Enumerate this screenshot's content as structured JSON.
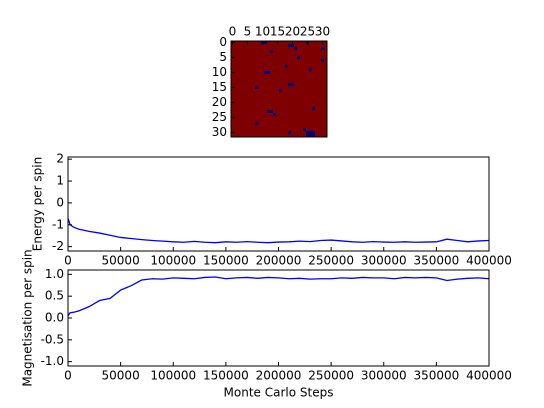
{
  "chart_data": [
    {
      "type": "heatmap",
      "xlim": [
        -0.5,
        31.5
      ],
      "ylim": [
        -0.5,
        31.5
      ],
      "xticks": [
        0,
        5,
        10,
        15,
        20,
        25,
        30
      ],
      "yticks": [
        0,
        5,
        10,
        15,
        20,
        25,
        30
      ],
      "zlim": [
        -1,
        1
      ],
      "colors": [
        "#00007f",
        "#7f0000"
      ],
      "z": [
        [
          1,
          1,
          1,
          1,
          1,
          1,
          1,
          1,
          1,
          1,
          -1,
          -1,
          1,
          1,
          1,
          1,
          1,
          1,
          1,
          1,
          1,
          1,
          1,
          1,
          1,
          -1,
          1,
          1,
          1,
          1,
          1,
          1
        ],
        [
          1,
          1,
          1,
          1,
          1,
          1,
          1,
          1,
          1,
          1,
          1,
          1,
          1,
          1,
          1,
          1,
          1,
          1,
          1,
          -1,
          -1,
          1,
          1,
          1,
          1,
          1,
          1,
          1,
          1,
          1,
          1,
          1
        ],
        [
          1,
          1,
          1,
          1,
          1,
          1,
          1,
          1,
          1,
          1,
          1,
          1,
          1,
          1,
          1,
          1,
          1,
          1,
          1,
          1,
          1,
          -1,
          1,
          1,
          1,
          1,
          1,
          1,
          1,
          1,
          -1,
          1
        ],
        [
          1,
          1,
          1,
          1,
          1,
          1,
          1,
          1,
          1,
          1,
          1,
          1,
          1,
          -1,
          1,
          1,
          1,
          1,
          1,
          1,
          1,
          1,
          1,
          1,
          1,
          1,
          1,
          1,
          1,
          1,
          1,
          1
        ],
        [
          1,
          1,
          1,
          1,
          1,
          1,
          1,
          1,
          1,
          1,
          1,
          1,
          1,
          1,
          1,
          1,
          1,
          1,
          1,
          1,
          1,
          1,
          1,
          1,
          1,
          1,
          1,
          1,
          1,
          1,
          1,
          1
        ],
        [
          1,
          1,
          1,
          1,
          1,
          1,
          1,
          1,
          1,
          1,
          1,
          1,
          1,
          1,
          1,
          1,
          1,
          1,
          1,
          1,
          1,
          1,
          -1,
          1,
          1,
          1,
          1,
          1,
          1,
          1,
          1,
          1
        ],
        [
          1,
          1,
          1,
          1,
          1,
          1,
          1,
          1,
          1,
          1,
          1,
          1,
          1,
          1,
          1,
          1,
          1,
          1,
          1,
          1,
          1,
          1,
          1,
          1,
          1,
          1,
          1,
          1,
          1,
          1,
          -1,
          1
        ],
        [
          1,
          1,
          1,
          1,
          1,
          1,
          1,
          1,
          1,
          1,
          1,
          1,
          1,
          1,
          1,
          1,
          1,
          1,
          1,
          1,
          1,
          1,
          1,
          1,
          1,
          1,
          1,
          1,
          1,
          1,
          1,
          1
        ],
        [
          1,
          1,
          1,
          1,
          1,
          1,
          1,
          1,
          1,
          1,
          1,
          1,
          1,
          1,
          1,
          1,
          1,
          1,
          -1,
          1,
          1,
          1,
          1,
          1,
          1,
          1,
          1,
          1,
          1,
          1,
          1,
          1
        ],
        [
          1,
          1,
          1,
          1,
          1,
          1,
          1,
          1,
          1,
          1,
          1,
          1,
          1,
          1,
          1,
          1,
          1,
          1,
          1,
          1,
          1,
          1,
          1,
          1,
          1,
          1,
          -1,
          1,
          1,
          1,
          1,
          1
        ],
        [
          1,
          1,
          1,
          1,
          1,
          1,
          1,
          1,
          1,
          1,
          1,
          -1,
          -1,
          1,
          1,
          1,
          1,
          1,
          1,
          1,
          1,
          1,
          1,
          1,
          1,
          1,
          1,
          1,
          1,
          1,
          1,
          1
        ],
        [
          1,
          1,
          1,
          1,
          1,
          1,
          1,
          1,
          1,
          1,
          1,
          1,
          1,
          1,
          1,
          1,
          1,
          1,
          1,
          1,
          1,
          1,
          1,
          1,
          1,
          1,
          1,
          1,
          1,
          1,
          1,
          1
        ],
        [
          1,
          1,
          1,
          1,
          1,
          1,
          1,
          1,
          1,
          1,
          1,
          1,
          1,
          1,
          1,
          1,
          1,
          1,
          1,
          1,
          1,
          1,
          1,
          1,
          1,
          1,
          1,
          1,
          1,
          1,
          1,
          1
        ],
        [
          1,
          1,
          1,
          1,
          1,
          1,
          1,
          1,
          1,
          1,
          1,
          1,
          1,
          1,
          1,
          1,
          1,
          1,
          1,
          1,
          1,
          1,
          1,
          1,
          1,
          1,
          1,
          1,
          1,
          1,
          1,
          1
        ],
        [
          1,
          1,
          1,
          1,
          1,
          1,
          1,
          1,
          1,
          1,
          1,
          1,
          1,
          1,
          1,
          1,
          1,
          1,
          1,
          -1,
          -1,
          1,
          1,
          1,
          1,
          1,
          1,
          1,
          1,
          1,
          1,
          1
        ],
        [
          1,
          1,
          1,
          1,
          1,
          1,
          1,
          1,
          -1,
          1,
          1,
          1,
          1,
          1,
          1,
          1,
          1,
          1,
          1,
          1,
          1,
          1,
          1,
          1,
          1,
          1,
          1,
          1,
          1,
          1,
          1,
          1
        ],
        [
          1,
          1,
          1,
          1,
          1,
          1,
          1,
          1,
          1,
          1,
          1,
          1,
          1,
          1,
          1,
          1,
          -1,
          1,
          1,
          1,
          1,
          1,
          1,
          1,
          1,
          1,
          1,
          1,
          1,
          1,
          1,
          1
        ],
        [
          1,
          1,
          1,
          1,
          1,
          1,
          1,
          1,
          1,
          1,
          1,
          1,
          1,
          1,
          1,
          1,
          1,
          1,
          1,
          1,
          1,
          1,
          1,
          1,
          1,
          1,
          1,
          1,
          1,
          1,
          1,
          1
        ],
        [
          1,
          1,
          1,
          1,
          1,
          1,
          1,
          1,
          1,
          1,
          1,
          1,
          1,
          1,
          1,
          1,
          1,
          1,
          1,
          1,
          1,
          1,
          1,
          1,
          1,
          1,
          1,
          1,
          1,
          1,
          1,
          1
        ],
        [
          1,
          1,
          1,
          1,
          1,
          1,
          1,
          1,
          1,
          1,
          1,
          1,
          1,
          1,
          1,
          1,
          1,
          1,
          1,
          1,
          1,
          1,
          1,
          1,
          1,
          1,
          1,
          1,
          1,
          1,
          1,
          1
        ],
        [
          1,
          1,
          1,
          1,
          1,
          1,
          1,
          1,
          1,
          1,
          1,
          1,
          1,
          1,
          1,
          1,
          1,
          1,
          1,
          1,
          1,
          1,
          1,
          1,
          1,
          1,
          1,
          1,
          1,
          1,
          1,
          1
        ],
        [
          1,
          1,
          1,
          1,
          1,
          1,
          1,
          1,
          1,
          1,
          1,
          1,
          1,
          1,
          1,
          1,
          1,
          1,
          1,
          1,
          1,
          1,
          1,
          1,
          1,
          1,
          1,
          1,
          1,
          1,
          1,
          1
        ],
        [
          1,
          1,
          1,
          1,
          1,
          1,
          1,
          1,
          1,
          1,
          1,
          1,
          1,
          1,
          1,
          1,
          1,
          1,
          1,
          1,
          1,
          1,
          1,
          1,
          1,
          1,
          1,
          -1,
          1,
          1,
          1,
          1
        ],
        [
          1,
          1,
          1,
          1,
          1,
          1,
          1,
          1,
          1,
          1,
          1,
          1,
          -1,
          -1,
          1,
          1,
          1,
          1,
          1,
          1,
          1,
          1,
          1,
          1,
          1,
          1,
          1,
          1,
          1,
          1,
          1,
          1
        ],
        [
          1,
          1,
          1,
          1,
          1,
          1,
          1,
          1,
          1,
          1,
          1,
          1,
          1,
          1,
          -1,
          1,
          1,
          1,
          1,
          1,
          1,
          1,
          1,
          1,
          1,
          1,
          1,
          1,
          1,
          1,
          1,
          1
        ],
        [
          1,
          1,
          1,
          1,
          1,
          1,
          1,
          1,
          1,
          1,
          1,
          1,
          1,
          1,
          1,
          1,
          1,
          1,
          1,
          1,
          1,
          1,
          1,
          1,
          1,
          1,
          1,
          1,
          1,
          1,
          1,
          1
        ],
        [
          1,
          1,
          1,
          1,
          1,
          1,
          1,
          1,
          1,
          1,
          1,
          1,
          1,
          1,
          1,
          1,
          1,
          1,
          1,
          1,
          1,
          1,
          1,
          1,
          1,
          1,
          1,
          1,
          1,
          1,
          1,
          1
        ],
        [
          1,
          1,
          1,
          1,
          1,
          1,
          1,
          1,
          -1,
          1,
          1,
          1,
          1,
          1,
          1,
          1,
          1,
          1,
          1,
          1,
          1,
          1,
          1,
          1,
          1,
          1,
          1,
          1,
          1,
          1,
          1,
          1
        ],
        [
          1,
          1,
          1,
          1,
          1,
          1,
          1,
          1,
          1,
          1,
          1,
          1,
          1,
          1,
          1,
          1,
          1,
          1,
          1,
          1,
          1,
          1,
          1,
          1,
          1,
          1,
          1,
          1,
          1,
          1,
          1,
          1
        ],
        [
          1,
          1,
          1,
          1,
          1,
          1,
          1,
          1,
          1,
          1,
          1,
          1,
          1,
          1,
          1,
          1,
          1,
          1,
          1,
          1,
          1,
          1,
          1,
          1,
          -1,
          1,
          1,
          1,
          1,
          1,
          1,
          1
        ],
        [
          1,
          1,
          1,
          1,
          1,
          1,
          1,
          1,
          1,
          1,
          1,
          1,
          1,
          1,
          1,
          1,
          1,
          1,
          1,
          -1,
          1,
          1,
          1,
          1,
          1,
          -1,
          -1,
          -1,
          1,
          1,
          1,
          1
        ],
        [
          1,
          1,
          1,
          1,
          1,
          1,
          1,
          1,
          1,
          1,
          1,
          1,
          1,
          1,
          1,
          1,
          1,
          1,
          1,
          1,
          1,
          1,
          1,
          1,
          1,
          -1,
          -1,
          -1,
          1,
          1,
          1,
          1
        ]
      ]
    },
    {
      "type": "line",
      "ylabel": "Energy per spin",
      "xlim": [
        0,
        400000
      ],
      "ylim": [
        -2.2,
        2.1
      ],
      "xticks": [
        0,
        50000,
        100000,
        150000,
        200000,
        250000,
        300000,
        350000,
        400000
      ],
      "yticks": [
        -2,
        -1,
        0,
        1,
        2
      ],
      "series": [
        {
          "color": "#0000ff",
          "x": [
            0,
            2000,
            5000,
            10000,
            20000,
            30000,
            40000,
            50000,
            60000,
            70000,
            80000,
            90000,
            100000,
            110000,
            120000,
            130000,
            140000,
            150000,
            160000,
            170000,
            180000,
            190000,
            200000,
            210000,
            220000,
            230000,
            240000,
            250000,
            260000,
            270000,
            280000,
            290000,
            300000,
            310000,
            320000,
            330000,
            340000,
            350000,
            360000,
            370000,
            380000,
            390000,
            400000
          ],
          "values": [
            -0.7,
            -1.0,
            -1.1,
            -1.2,
            -1.3,
            -1.38,
            -1.48,
            -1.58,
            -1.63,
            -1.68,
            -1.72,
            -1.75,
            -1.78,
            -1.8,
            -1.76,
            -1.8,
            -1.82,
            -1.78,
            -1.8,
            -1.77,
            -1.8,
            -1.82,
            -1.79,
            -1.78,
            -1.75,
            -1.77,
            -1.72,
            -1.7,
            -1.74,
            -1.78,
            -1.8,
            -1.77,
            -1.79,
            -1.8,
            -1.78,
            -1.8,
            -1.79,
            -1.78,
            -1.66,
            -1.72,
            -1.78,
            -1.74,
            -1.72
          ]
        }
      ]
    },
    {
      "type": "line",
      "ylabel": "Magnetisation per spin",
      "xlabel": "Monte Carlo Steps",
      "xlim": [
        0,
        400000
      ],
      "ylim": [
        -1.1,
        1.1
      ],
      "xticks": [
        0,
        50000,
        100000,
        150000,
        200000,
        250000,
        300000,
        350000,
        400000
      ],
      "yticks": [
        {
          "value": -1,
          "label": "-1.0"
        },
        {
          "value": -0.5,
          "label": "-0.5"
        },
        {
          "value": 0,
          "label": "0.0"
        },
        {
          "value": 0.5,
          "label": "0.5"
        },
        {
          "value": 1,
          "label": "1.0"
        }
      ],
      "series": [
        {
          "color": "#0000ff",
          "x": [
            0,
            2000,
            5000,
            10000,
            20000,
            30000,
            40000,
            50000,
            60000,
            70000,
            80000,
            90000,
            100000,
            110000,
            120000,
            130000,
            140000,
            150000,
            160000,
            170000,
            180000,
            190000,
            200000,
            210000,
            220000,
            230000,
            240000,
            250000,
            260000,
            270000,
            280000,
            290000,
            300000,
            310000,
            320000,
            330000,
            340000,
            350000,
            360000,
            370000,
            380000,
            390000,
            400000
          ],
          "values": [
            0.05,
            0.12,
            0.13,
            0.16,
            0.26,
            0.4,
            0.45,
            0.64,
            0.74,
            0.87,
            0.9,
            0.89,
            0.92,
            0.91,
            0.9,
            0.93,
            0.94,
            0.9,
            0.92,
            0.93,
            0.91,
            0.93,
            0.92,
            0.9,
            0.91,
            0.89,
            0.9,
            0.9,
            0.92,
            0.91,
            0.93,
            0.92,
            0.92,
            0.9,
            0.93,
            0.92,
            0.93,
            0.92,
            0.86,
            0.89,
            0.91,
            0.92,
            0.9
          ]
        }
      ]
    }
  ]
}
